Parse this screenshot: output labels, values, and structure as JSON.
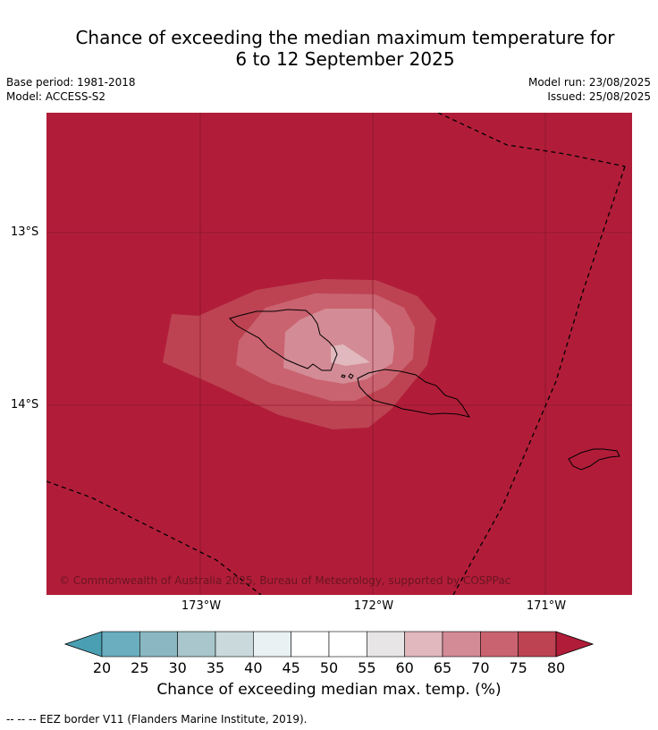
{
  "title": {
    "line1": "Chance of exceeding the median maximum temperature for",
    "line2": "6 to 12 September 2025"
  },
  "meta": {
    "base_period": "Base period: 1981-2018",
    "model": "Model: ACCESS-S2",
    "model_run": "Model run: 23/08/2025",
    "issued": "Issued: 25/08/2025"
  },
  "map": {
    "copyright": "© Commonwealth of Australia 2025, Bureau of Meteorology, supported by COSPPac",
    "lat_labels": [
      "13°S",
      "14°S"
    ],
    "lon_labels": [
      "173°W",
      "172°W",
      "171°W"
    ],
    "background_color": "#b11d39"
  },
  "colorbar": {
    "ticks": [
      "20",
      "25",
      "30",
      "35",
      "40",
      "45",
      "50",
      "55",
      "60",
      "65",
      "70",
      "75",
      "80"
    ],
    "colors": [
      "#4a9fb3",
      "#6aaebf",
      "#8ab7c2",
      "#a8c6cb",
      "#c9d9dc",
      "#e9f1f2",
      "#ffffff",
      "#ffffff",
      "#e8e5e6",
      "#e0b8bd",
      "#d38b95",
      "#c9636f",
      "#bd4352",
      "#b11d39"
    ],
    "label": "Chance of exceeding median max. temp. (%)"
  },
  "footnote": "--  --  -- EEZ border V11 (Flanders Marine Institute, 2019)."
}
